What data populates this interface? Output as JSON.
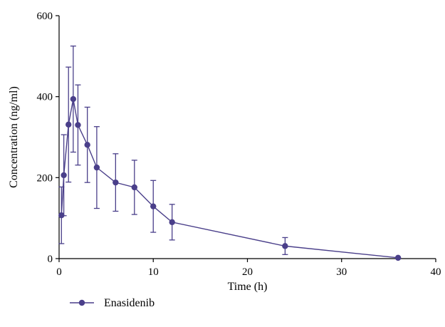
{
  "chart_data": {
    "type": "line",
    "xlabel": "Time (h)",
    "ylabel": "Concentration (ng/ml)",
    "xlim": [
      0,
      40
    ],
    "ylim": [
      0,
      600
    ],
    "xticks": [
      0,
      10,
      20,
      30,
      40
    ],
    "yticks": [
      0,
      200,
      400,
      600
    ],
    "grid": false,
    "legend_position": "bottom-left",
    "series": [
      {
        "name": "Enasidenib",
        "color": "#4a3f8a",
        "x": [
          0.25,
          0.5,
          1,
          1.5,
          2,
          3,
          4,
          6,
          8,
          10,
          12,
          24,
          36
        ],
        "y": [
          107,
          206,
          331,
          394,
          330,
          281,
          225,
          188,
          176,
          129,
          90,
          31,
          2
        ],
        "error": [
          70,
          100,
          142,
          131,
          99,
          93,
          101,
          71,
          67,
          64,
          44,
          21,
          1
        ]
      }
    ]
  }
}
